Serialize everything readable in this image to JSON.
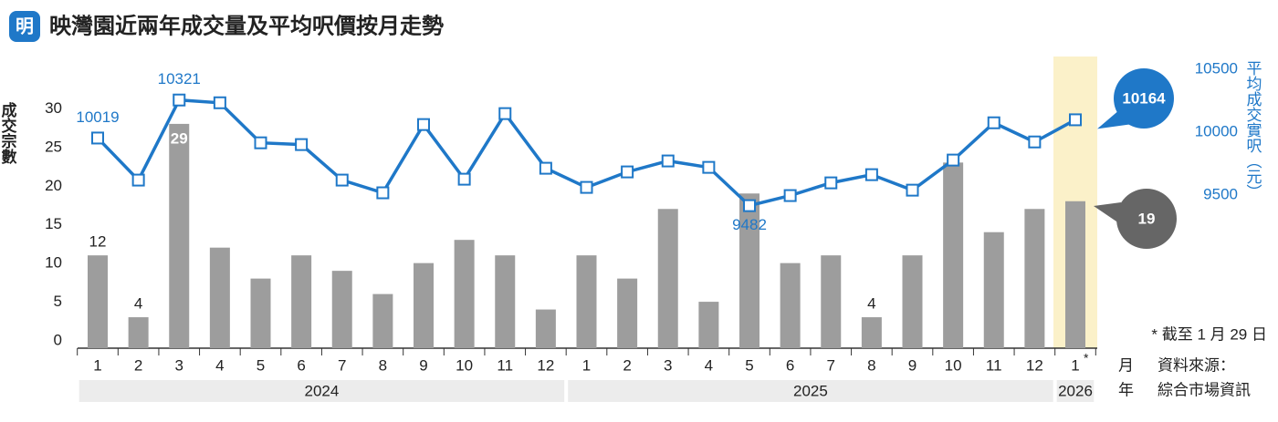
{
  "chart_data": {
    "type": "bar",
    "logo": "明",
    "title": "映灣園近兩年成交量及平均呎價按月走勢",
    "groups": [
      {
        "label": "2024",
        "categories": [
          "1",
          "2",
          "3",
          "4",
          "5",
          "6",
          "7",
          "8",
          "9",
          "10",
          "11",
          "12"
        ]
      },
      {
        "label": "2025",
        "categories": [
          "1",
          "2",
          "3",
          "4",
          "5",
          "6",
          "7",
          "8",
          "9",
          "10",
          "11",
          "12"
        ]
      },
      {
        "label": "2026",
        "categories": [
          "1"
        ]
      }
    ],
    "note_marker": "*",
    "x_unit": "月",
    "group_unit": "年",
    "note": "* 截至 1 月 29 日",
    "source_label": "資料來源：",
    "source": "綜合市場資訊",
    "ylim": [
      0,
      35
    ],
    "yticks": [
      0,
      5,
      10,
      15,
      20,
      25,
      30
    ],
    "y2lim": [
      8350,
      10500
    ],
    "y2ticks": [
      9500,
      10000,
      10500
    ],
    "series": [
      {
        "name": "成交宗數",
        "type": "bar",
        "color": "#9d9d9d",
        "values": [
          12,
          4,
          29,
          13,
          9,
          12,
          10,
          7,
          11,
          14,
          12,
          5,
          12,
          9,
          18,
          6,
          20,
          11,
          12,
          4,
          12,
          24,
          15,
          18,
          19
        ]
      },
      {
        "name": "平均成交實呎（元）",
        "type": "line",
        "axis": "y2",
        "color": "#1f78c8",
        "values": [
          10019,
          9685,
          10321,
          10299,
          9981,
          9967,
          9685,
          9584,
          10126,
          9692,
          10213,
          9779,
          9627,
          9750,
          9837,
          9786,
          9482,
          9562,
          9663,
          9728,
          9605,
          9844,
          10140,
          9988,
          10164
        ]
      }
    ]
  }
}
